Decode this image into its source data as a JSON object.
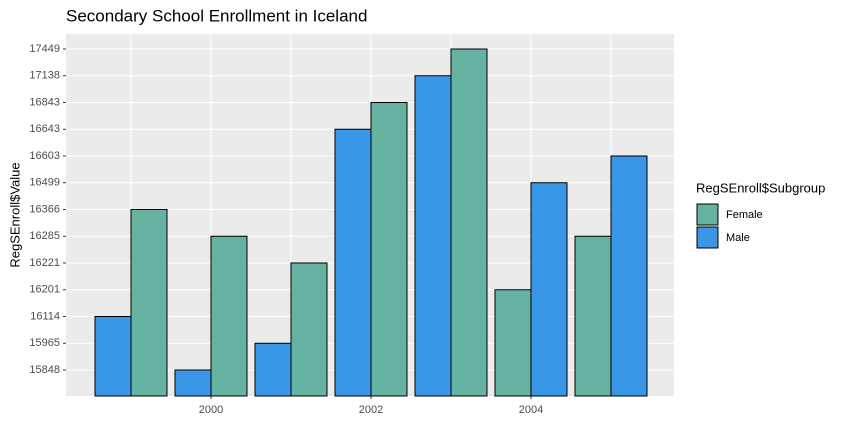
{
  "chart_data": {
    "type": "bar",
    "title": "Secondary School Enrollment in Iceland",
    "y_label": "RegSEnroll$Value",
    "legend_title": "RegSEnroll$Subgroup",
    "y_scale": "discrete",
    "categories": [
      null,
      "2000",
      null,
      "2002",
      null,
      "2004",
      null
    ],
    "series": [
      {
        "name": "Female",
        "color": "#66b2a0",
        "values": [
          16366,
          16285,
          16221,
          16843,
          17449,
          16201,
          16285
        ]
      },
      {
        "name": "Male",
        "color": "#3a96e6",
        "values": [
          16114,
          15848,
          15965,
          16643,
          17138,
          16499,
          16603
        ]
      }
    ],
    "yticks": [
      15848,
      15965,
      16114,
      16201,
      16221,
      16285,
      16366,
      16499,
      16603,
      16643,
      16843,
      17138,
      17449
    ],
    "grid": true,
    "legend": "right"
  }
}
